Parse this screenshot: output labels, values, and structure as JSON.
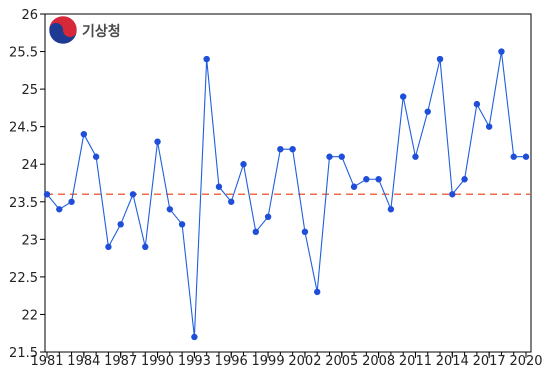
{
  "logo": {
    "text": "기상청",
    "color": "#4a4a4a",
    "red": "#d62839",
    "blue": "#1f3a93"
  },
  "chart_data": {
    "type": "line",
    "title": "",
    "xlabel": "",
    "ylabel": "",
    "x": [
      1981,
      1982,
      1983,
      1984,
      1985,
      1986,
      1987,
      1988,
      1989,
      1990,
      1991,
      1992,
      1993,
      1994,
      1995,
      1996,
      1997,
      1998,
      1999,
      2000,
      2001,
      2002,
      2003,
      2004,
      2005,
      2006,
      2007,
      2008,
      2009,
      2010,
      2011,
      2012,
      2013,
      2014,
      2015,
      2016,
      2017,
      2018,
      2019,
      2020
    ],
    "series": [
      {
        "values": [
          23.6,
          23.4,
          23.5,
          24.4,
          24.1,
          22.9,
          23.2,
          23.6,
          22.9,
          24.3,
          23.4,
          23.2,
          21.7,
          25.4,
          23.7,
          23.5,
          24.0,
          23.1,
          23.3,
          24.2,
          24.2,
          23.1,
          22.3,
          24.1,
          24.1,
          23.7,
          23.8,
          23.8,
          23.4,
          24.9,
          24.1,
          24.7,
          25.4,
          23.6,
          23.8,
          24.8,
          24.5,
          25.5,
          24.1,
          24.1
        ],
        "color": "#1f5fe0",
        "marker_color": "#1f4fd8"
      }
    ],
    "reference_line": {
      "value": 23.6,
      "color": "#f26a4b",
      "style": "dashed"
    },
    "xticks": [
      1981,
      1984,
      1987,
      1990,
      1993,
      1996,
      1999,
      2002,
      2005,
      2008,
      2011,
      2014,
      2017,
      2020
    ],
    "yticks": [
      21.5,
      22,
      22.5,
      23,
      23.5,
      24,
      24.5,
      25,
      25.5,
      26
    ],
    "ytick_labels": [
      "21.5",
      "22",
      "22.5",
      "23",
      "23.5",
      "24",
      "24.5",
      "25",
      "25.5",
      "26"
    ],
    "xlim": [
      1981,
      2020
    ],
    "ylim": [
      21.5,
      26
    ],
    "grid": false,
    "legend": "none"
  }
}
